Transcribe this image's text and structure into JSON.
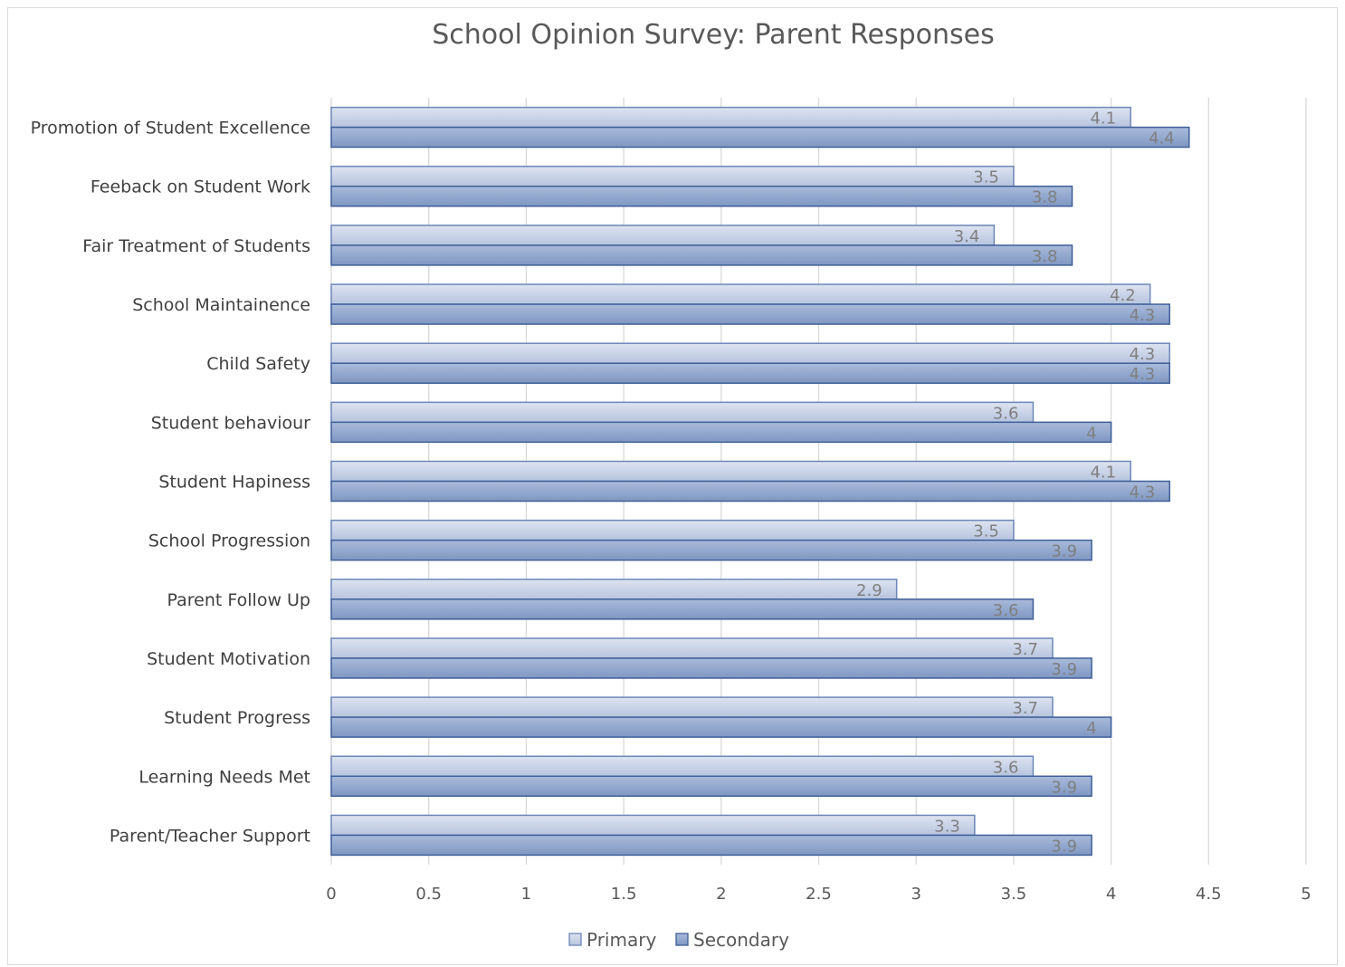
{
  "chart_data": {
    "type": "bar",
    "orientation": "horizontal",
    "title": "School Opinion Survey: Parent Responses",
    "categories": [
      "Promotion of Student Excellence",
      "Feeback on Student Work",
      "Fair Treatment of Students",
      "School Maintainence",
      "Child Safety",
      "Student behaviour",
      "Student Hapiness",
      "School Progression",
      "Parent Follow Up",
      "Student Motivation",
      "Student Progress",
      "Learning Needs Met",
      "Parent/Teacher Support"
    ],
    "series": [
      {
        "name": "Primary",
        "color": "#c5d0e6",
        "values": [
          4.1,
          3.5,
          3.4,
          4.2,
          4.3,
          3.6,
          4.1,
          3.5,
          2.9,
          3.7,
          3.7,
          3.6,
          3.3
        ]
      },
      {
        "name": "Secondary",
        "color": "#8fa5cc",
        "values": [
          4.4,
          3.8,
          3.8,
          4.3,
          4.3,
          4,
          4.3,
          3.9,
          3.6,
          3.9,
          4,
          3.9,
          3.9
        ]
      }
    ],
    "xlim": [
      0,
      5
    ],
    "xticks": [
      "0",
      "0.5",
      "1",
      "1.5",
      "2",
      "2.5",
      "3",
      "3.5",
      "4",
      "4.5",
      "5"
    ],
    "grid": true,
    "legend_position": "bottom",
    "data_labels": true
  }
}
